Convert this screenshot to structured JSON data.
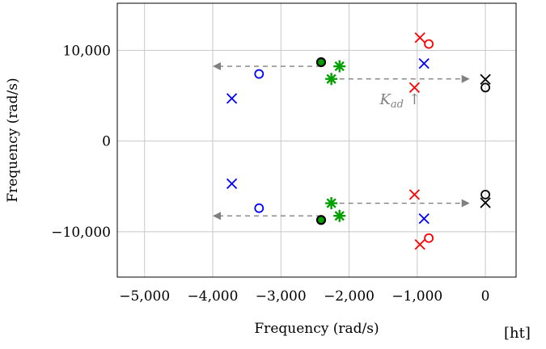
{
  "chart_data": {
    "type": "scatter",
    "xlabel": "Frequency (rad/s)",
    "ylabel": "Frequency (rad/s)",
    "xlim": [
      -5400,
      450
    ],
    "ylim": [
      -15000,
      15200
    ],
    "x_ticks": [
      -5000,
      -4000,
      -3000,
      -2000,
      -1000,
      0
    ],
    "x_tick_labels": [
      "−5,000",
      "−4,000",
      "−3,000",
      "−2,000",
      "−1,000",
      "0"
    ],
    "y_ticks": [
      -10000,
      0,
      10000
    ],
    "y_tick_labels": [
      "−10,000",
      "0",
      "10,000"
    ],
    "grid": true,
    "annotation": {
      "text": "K",
      "subscript": "ad",
      "suffix": " ↑",
      "x": -1550,
      "y": 4050
    },
    "trailing_text": "[ht]",
    "series": [
      {
        "marker": "x",
        "color": "#0000ff",
        "points": [
          [
            -3720,
            4700
          ],
          [
            -3720,
            -4700
          ],
          [
            -900,
            8550
          ],
          [
            -900,
            -8550
          ]
        ]
      },
      {
        "marker": "o",
        "color": "#0000ff",
        "points": [
          [
            -3320,
            7400
          ],
          [
            -3320,
            -7400
          ]
        ]
      },
      {
        "marker": "x",
        "color": "#ff0000",
        "points": [
          [
            -1040,
            5900
          ],
          [
            -1040,
            -5900
          ],
          [
            -960,
            11400
          ],
          [
            -960,
            -11400
          ]
        ]
      },
      {
        "marker": "o",
        "color": "#ff0000",
        "points": [
          [
            -830,
            10700
          ],
          [
            -830,
            -10700
          ]
        ]
      },
      {
        "marker": "x",
        "color": "#000000",
        "points": [
          [
            0,
            6800
          ],
          [
            0,
            -6800
          ]
        ]
      },
      {
        "marker": "o",
        "color": "#000000",
        "points": [
          [
            0,
            5900
          ],
          [
            0,
            -5900
          ]
        ]
      },
      {
        "marker": "asterisk",
        "color": "#00a000",
        "points": [
          [
            -2140,
            8250
          ],
          [
            -2260,
            6850
          ],
          [
            -2260,
            -6850
          ],
          [
            -2140,
            -8250
          ]
        ]
      },
      {
        "marker": "filled-o",
        "color": "#000000",
        "fill": "#00a000",
        "points": [
          [
            -2410,
            8700
          ],
          [
            -2410,
            -8700
          ]
        ]
      }
    ],
    "arrows": [
      {
        "from": [
          -2410,
          8250
        ],
        "to": [
          -4000,
          8250
        ]
      },
      {
        "from": [
          -2410,
          -8250
        ],
        "to": [
          -4000,
          -8250
        ]
      },
      {
        "from": [
          -2140,
          6850
        ],
        "to": [
          -230,
          6850
        ]
      },
      {
        "from": [
          -2140,
          -6850
        ],
        "to": [
          -230,
          -6850
        ]
      }
    ]
  }
}
